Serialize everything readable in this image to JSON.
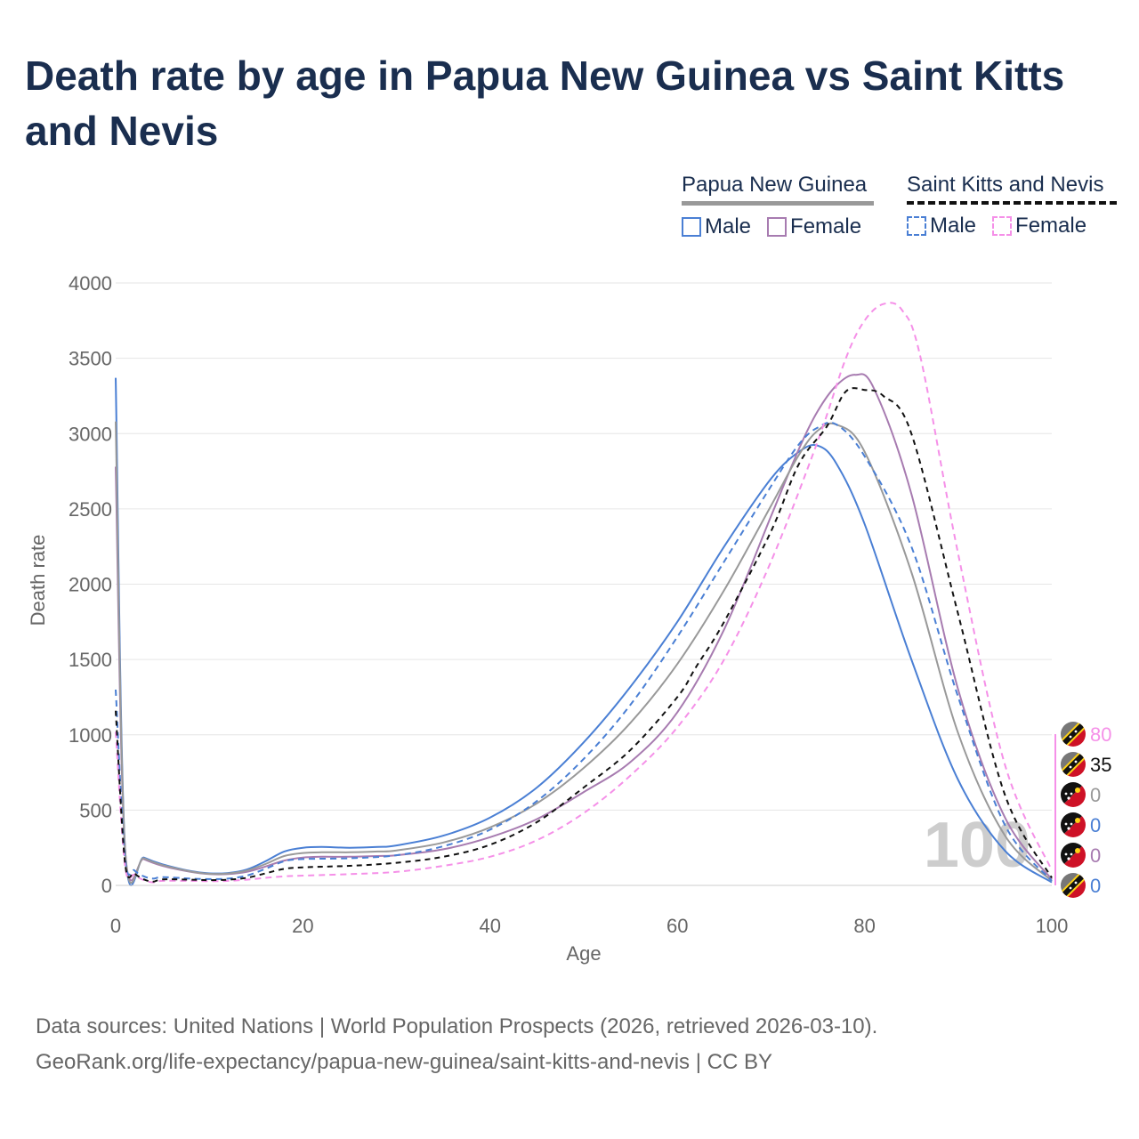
{
  "title": "Death rate by age in Papua New Guinea vs Saint Kitts and Nevis",
  "legend": {
    "group1": {
      "name": "Papua New Guinea",
      "male": "Male",
      "female": "Female"
    },
    "group2": {
      "name": "Saint Kitts and Nevis",
      "male": "Male",
      "female": "Female"
    }
  },
  "colors": {
    "pngMale": "#4a7fd4",
    "pngFemale": "#a77bb0",
    "pngTotal": "#999999",
    "sknMale": "#4a7fd4",
    "sknFemale": "#f590e8",
    "sknTotal": "#111111",
    "title": "#1a2e4f",
    "watermark": "#c8c8c8"
  },
  "footer": {
    "line1": "Data sources: United Nations | World Population Prospects (2026, retrieved 2026-03-10).",
    "line2": "GeoRank.org/life-expectancy/papua-new-guinea/saint-kitts-and-nevis | CC BY"
  },
  "chart_data": {
    "type": "line",
    "title": "Death rate by age in Papua New Guinea vs Saint Kitts and Nevis",
    "xlabel": "Age",
    "ylabel": "Death rate",
    "xlim": [
      0,
      100
    ],
    "ylim": [
      0,
      4000
    ],
    "xticks": [
      0,
      20,
      40,
      60,
      80,
      100
    ],
    "yticks": [
      0,
      500,
      1000,
      1500,
      2000,
      2500,
      3000,
      3500,
      4000
    ],
    "grid": true,
    "watermark": "100",
    "series": [
      {
        "name": "Papua New Guinea Male",
        "color": "#4a7fd4",
        "dash": "",
        "x": [
          0,
          1,
          3,
          5,
          8,
          10,
          12,
          14,
          16,
          18,
          20,
          22,
          25,
          28,
          30,
          35,
          40,
          45,
          50,
          55,
          60,
          65,
          70,
          73,
          75,
          77,
          80,
          85,
          90,
          95,
          100
        ],
        "y": [
          3370,
          250,
          185,
          140,
          95,
          80,
          82,
          105,
          160,
          225,
          250,
          255,
          250,
          255,
          265,
          330,
          450,
          650,
          950,
          1320,
          1750,
          2250,
          2700,
          2880,
          2920,
          2800,
          2400,
          1500,
          700,
          230,
          20
        ]
      },
      {
        "name": "Papua New Guinea Female",
        "color": "#a77bb0",
        "dash": "",
        "x": [
          0,
          1,
          3,
          5,
          8,
          10,
          12,
          14,
          16,
          18,
          20,
          22,
          25,
          28,
          30,
          35,
          40,
          45,
          50,
          55,
          60,
          65,
          70,
          73,
          75,
          77,
          79,
          81,
          85,
          90,
          95,
          100
        ],
        "y": [
          2780,
          240,
          175,
          130,
          90,
          75,
          75,
          90,
          125,
          165,
          185,
          190,
          190,
          195,
          200,
          240,
          320,
          440,
          620,
          820,
          1150,
          1700,
          2450,
          2900,
          3150,
          3320,
          3390,
          3300,
          2600,
          1300,
          450,
          40
        ]
      },
      {
        "name": "Papua New Guinea Total",
        "color": "#999999",
        "dash": "",
        "x": [
          0,
          1,
          3,
          5,
          8,
          10,
          12,
          14,
          16,
          18,
          20,
          22,
          25,
          28,
          30,
          35,
          40,
          45,
          50,
          55,
          60,
          65,
          70,
          73,
          75,
          77,
          80,
          85,
          90,
          95,
          100
        ],
        "y": [
          3080,
          245,
          180,
          135,
          92,
          77,
          79,
          98,
          142,
          195,
          215,
          220,
          220,
          225,
          232,
          285,
          385,
          545,
          780,
          1080,
          1470,
          1960,
          2520,
          2860,
          3020,
          3060,
          2880,
          2080,
          1010,
          330,
          30
        ]
      },
      {
        "name": "Saint Kitts and Nevis Male",
        "color": "#4a7fd4",
        "dash": "7,5",
        "x": [
          0,
          1,
          2,
          3,
          4,
          5,
          8,
          10,
          12,
          14,
          16,
          18,
          20,
          25,
          30,
          35,
          40,
          45,
          50,
          55,
          60,
          65,
          70,
          73,
          75,
          77,
          80,
          85,
          90,
          95,
          100
        ],
        "y": [
          1300,
          180,
          100,
          60,
          45,
          55,
          45,
          42,
          45,
          65,
          110,
          160,
          175,
          180,
          200,
          260,
          370,
          560,
          840,
          1200,
          1650,
          2150,
          2650,
          2930,
          3040,
          3060,
          2850,
          2250,
          1250,
          400,
          30
        ]
      },
      {
        "name": "Saint Kitts and Nevis Female",
        "color": "#f590e8",
        "dash": "7,5",
        "x": [
          0,
          1,
          2,
          3,
          4,
          5,
          8,
          10,
          12,
          14,
          16,
          18,
          20,
          25,
          30,
          35,
          40,
          45,
          50,
          55,
          60,
          65,
          70,
          75,
          78,
          80,
          82,
          84,
          86,
          90,
          95,
          100
        ],
        "y": [
          1020,
          130,
          70,
          35,
          20,
          30,
          30,
          28,
          30,
          38,
          50,
          60,
          65,
          75,
          90,
          130,
          190,
          300,
          480,
          730,
          1050,
          1500,
          2150,
          2950,
          3500,
          3750,
          3860,
          3820,
          3500,
          2200,
          800,
          100
        ]
      },
      {
        "name": "Saint Kitts and Nevis Total",
        "color": "#111111",
        "dash": "6,5",
        "x": [
          0,
          1,
          2,
          3,
          4,
          5,
          8,
          10,
          12,
          14,
          16,
          18,
          20,
          25,
          30,
          35,
          40,
          45,
          50,
          55,
          60,
          62,
          65,
          70,
          73,
          76,
          78,
          80,
          82,
          85,
          90,
          95,
          100
        ],
        "y": [
          1160,
          150,
          80,
          40,
          25,
          40,
          38,
          35,
          38,
          50,
          80,
          110,
          120,
          130,
          150,
          190,
          270,
          420,
          650,
          900,
          1250,
          1450,
          1750,
          2350,
          2800,
          3050,
          3280,
          3290,
          3250,
          3000,
          1800,
          600,
          50
        ]
      }
    ],
    "end_labels": [
      {
        "value": "80",
        "color": "#f590e8",
        "flag": "skn"
      },
      {
        "value": "35",
        "color": "#111111",
        "flag": "skn"
      },
      {
        "value": "0",
        "color": "#999999",
        "flag": "png"
      },
      {
        "value": "0",
        "color": "#4a7fd4",
        "flag": "png"
      },
      {
        "value": "0",
        "color": "#a77bb0",
        "flag": "png"
      },
      {
        "value": "0",
        "color": "#4a7fd4",
        "flag": "skn"
      }
    ]
  }
}
